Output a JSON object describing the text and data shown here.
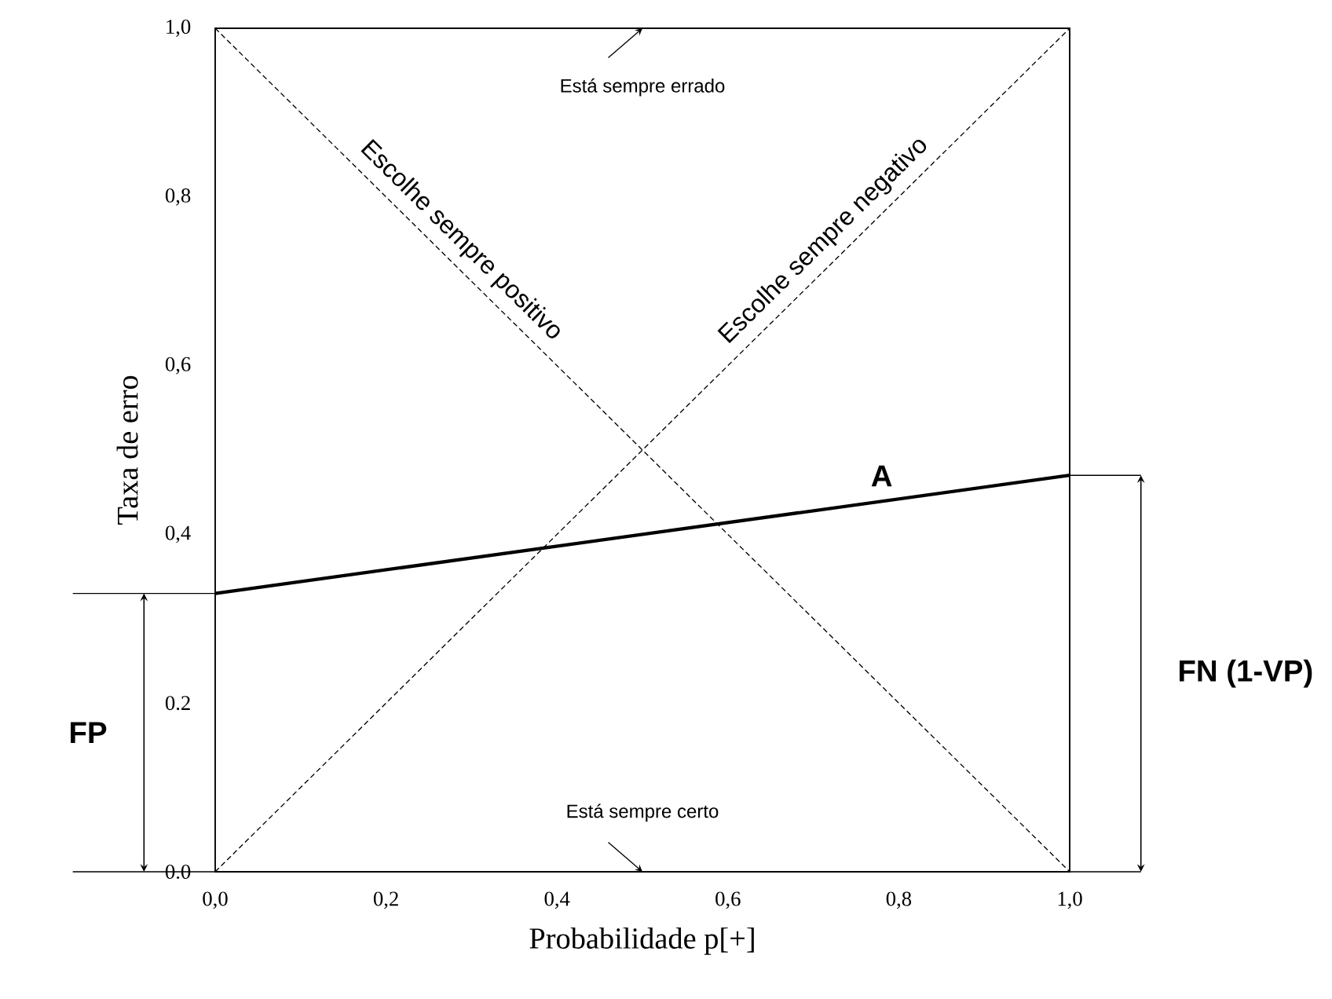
{
  "chart_data": {
    "type": "line",
    "xlabel": "Probabilidade p[+]",
    "ylabel": "Taxa de erro",
    "x": [
      0,
      1
    ],
    "series": [
      {
        "name": "Escolhe sempre negativo",
        "color": "#000000",
        "values": [
          0,
          1
        ],
        "line_style": "dashed"
      },
      {
        "name": "Escolhe sempre positivo",
        "color": "#000000",
        "values": [
          1,
          0
        ],
        "line_style": "dashed"
      },
      {
        "name": "A",
        "color": "#000000",
        "values": [
          0.33,
          0.47
        ],
        "line_style": "solid"
      }
    ],
    "xlim": [
      0,
      1
    ],
    "ylim": [
      0,
      1
    ],
    "xticks": [
      {
        "value": 0,
        "label": "0,0"
      },
      {
        "value": 0.2,
        "label": "0,2"
      },
      {
        "value": 0.4,
        "label": "0,4"
      },
      {
        "value": 0.6,
        "label": "0,6"
      },
      {
        "value": 0.8,
        "label": "0,8"
      },
      {
        "value": 1,
        "label": "1,0"
      }
    ],
    "yticks": [
      {
        "value": 0,
        "label": "0.0"
      },
      {
        "value": 0.2,
        "label": "0.2"
      },
      {
        "value": 0.4,
        "label": "0,4"
      },
      {
        "value": 0.6,
        "label": "0,6"
      },
      {
        "value": 0.8,
        "label": "0,8"
      },
      {
        "value": 1,
        "label": "1,0"
      }
    ],
    "annotations": [
      "Está sempre errado",
      "Está sempre certo",
      "FP",
      "FN (1-VP)"
    ],
    "grid": false,
    "legend": false,
    "marker": "none"
  }
}
